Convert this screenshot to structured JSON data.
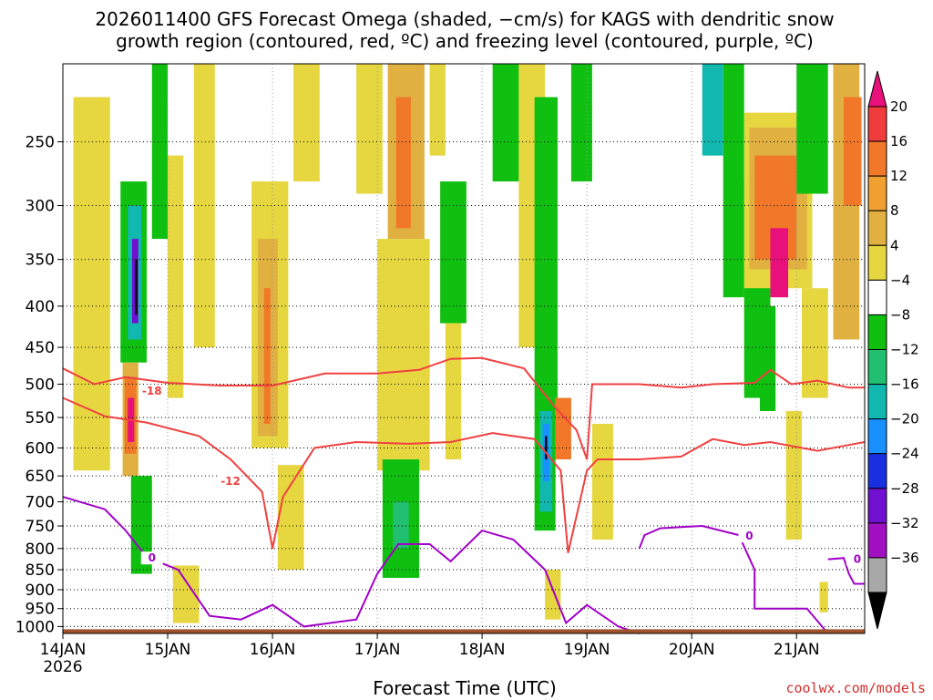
{
  "chart_data": {
    "type": "heatmap",
    "title_line1": "2026011400 GFS Forecast Omega (shaded, −cm/s) for KAGS with dendritic snow",
    "title_line2": "growth region (contoured, red, ºC) and freezing level (contoured, purple, ºC)",
    "xlabel": "Forecast Time (UTC)",
    "ylabel": "",
    "credit": "coolwx.com/models",
    "x_ticks": [
      {
        "day": 0,
        "label": "14JAN",
        "sub": "2026"
      },
      {
        "day": 1,
        "label": "15JAN",
        "sub": ""
      },
      {
        "day": 2,
        "label": "16JAN",
        "sub": ""
      },
      {
        "day": 3,
        "label": "17JAN",
        "sub": ""
      },
      {
        "day": 4,
        "label": "18JAN",
        "sub": ""
      },
      {
        "day": 5,
        "label": "19JAN",
        "sub": ""
      },
      {
        "day": 6,
        "label": "20JAN",
        "sub": ""
      },
      {
        "day": 7,
        "label": "21JAN",
        "sub": ""
      }
    ],
    "xlim": [
      0,
      7.65
    ],
    "y_ticks": [
      250,
      300,
      350,
      400,
      450,
      500,
      550,
      600,
      650,
      700,
      750,
      800,
      850,
      900,
      950,
      1000
    ],
    "ylim": [
      200,
      1020
    ],
    "y_scale": "log-pressure",
    "grid": true,
    "colorbar": {
      "labels": [
        "20",
        "16",
        "12",
        "8",
        "4",
        "−4",
        "−8",
        "−12",
        "−16",
        "−20",
        "−24",
        "−28",
        "−32",
        "−36"
      ],
      "colors": [
        "#e8107a",
        "#f03c3c",
        "#f07828",
        "#f0a030",
        "#e0b040",
        "#e6d640",
        "#ffffff",
        "#10c010",
        "#20c070",
        "#10b8b0",
        "#1890ff",
        "#1830e0",
        "#7010d0",
        "#a010c0",
        "#a8a8a8",
        "#000000"
      ]
    },
    "ground_color": "#a0522d",
    "omega_cells": [
      {
        "x": [
          0.55,
          0.8
        ],
        "p": [
          280,
          470
        ],
        "color": "#10c010"
      },
      {
        "x": [
          0.62,
          0.75
        ],
        "p": [
          300,
          440
        ],
        "color": "#10b8b0"
      },
      {
        "x": [
          0.66,
          0.72
        ],
        "p": [
          330,
          420
        ],
        "color": "#7010d0"
      },
      {
        "x": [
          0.69,
          0.71
        ],
        "p": [
          350,
          410
        ],
        "color": "#000000"
      },
      {
        "x": [
          0.57,
          0.72
        ],
        "p": [
          470,
          650
        ],
        "color": "#e0b040"
      },
      {
        "x": [
          0.59,
          0.7
        ],
        "p": [
          490,
          610
        ],
        "color": "#f07828"
      },
      {
        "x": [
          0.62,
          0.68
        ],
        "p": [
          520,
          590
        ],
        "color": "#e8107a"
      },
      {
        "x": [
          0.18,
          0.3
        ],
        "p": [
          300,
          500
        ],
        "color": "#10c010"
      },
      {
        "x": [
          0.1,
          0.45
        ],
        "p": [
          220,
          640
        ],
        "color": "#e6d640"
      },
      {
        "x": [
          0.65,
          0.85
        ],
        "p": [
          650,
          860
        ],
        "color": "#10c010"
      },
      {
        "x": [
          0.85,
          1.0
        ],
        "p": [
          200,
          330
        ],
        "color": "#10c010"
      },
      {
        "x": [
          1.0,
          1.15
        ],
        "p": [
          260,
          520
        ],
        "color": "#e6d640"
      },
      {
        "x": [
          1.25,
          1.45
        ],
        "p": [
          200,
          450
        ],
        "color": "#e6d640"
      },
      {
        "x": [
          1.05,
          1.3
        ],
        "p": [
          840,
          990
        ],
        "color": "#e6d640"
      },
      {
        "x": [
          1.8,
          2.15
        ],
        "p": [
          280,
          600
        ],
        "color": "#e6d640"
      },
      {
        "x": [
          1.86,
          2.05
        ],
        "p": [
          330,
          580
        ],
        "color": "#e0b040"
      },
      {
        "x": [
          1.92,
          1.98
        ],
        "p": [
          380,
          560
        ],
        "color": "#f07828"
      },
      {
        "x": [
          2.05,
          2.3
        ],
        "p": [
          630,
          850
        ],
        "color": "#e6d640"
      },
      {
        "x": [
          2.2,
          2.45
        ],
        "p": [
          200,
          280
        ],
        "color": "#e6d640"
      },
      {
        "x": [
          2.8,
          3.05
        ],
        "p": [
          200,
          290
        ],
        "color": "#e6d640"
      },
      {
        "x": [
          3.1,
          3.45
        ],
        "p": [
          200,
          330
        ],
        "color": "#e0b040"
      },
      {
        "x": [
          3.18,
          3.32
        ],
        "p": [
          220,
          320
        ],
        "color": "#f07828"
      },
      {
        "x": [
          3.0,
          3.5
        ],
        "p": [
          330,
          640
        ],
        "color": "#e6d640"
      },
      {
        "x": [
          3.05,
          3.4
        ],
        "p": [
          620,
          870
        ],
        "color": "#10c010"
      },
      {
        "x": [
          3.15,
          3.3
        ],
        "p": [
          700,
          800
        ],
        "color": "#20c070"
      },
      {
        "x": [
          3.5,
          3.65
        ],
        "p": [
          200,
          260
        ],
        "color": "#e6d640"
      },
      {
        "x": [
          3.6,
          3.85
        ],
        "p": [
          280,
          420
        ],
        "color": "#10c010"
      },
      {
        "x": [
          3.65,
          3.8
        ],
        "p": [
          420,
          620
        ],
        "color": "#e6d640"
      },
      {
        "x": [
          4.1,
          4.35
        ],
        "p": [
          200,
          280
        ],
        "color": "#10c010"
      },
      {
        "x": [
          4.35,
          4.6
        ],
        "p": [
          200,
          450
        ],
        "color": "#e6d640"
      },
      {
        "x": [
          4.5,
          4.72
        ],
        "p": [
          220,
          520
        ],
        "color": "#10c010"
      },
      {
        "x": [
          4.5,
          4.7
        ],
        "p": [
          520,
          760
        ],
        "color": "#10c010"
      },
      {
        "x": [
          4.55,
          4.67
        ],
        "p": [
          540,
          720
        ],
        "color": "#10b8b0"
      },
      {
        "x": [
          4.58,
          4.64
        ],
        "p": [
          560,
          660
        ],
        "color": "#1890ff"
      },
      {
        "x": [
          4.6,
          4.62
        ],
        "p": [
          580,
          620
        ],
        "color": "#000000"
      },
      {
        "x": [
          4.7,
          4.85
        ],
        "p": [
          520,
          620
        ],
        "color": "#f07828"
      },
      {
        "x": [
          4.6,
          4.75
        ],
        "p": [
          850,
          980
        ],
        "color": "#e6d640"
      },
      {
        "x": [
          4.85,
          5.05
        ],
        "p": [
          200,
          280
        ],
        "color": "#10c010"
      },
      {
        "x": [
          5.05,
          5.25
        ],
        "p": [
          560,
          780
        ],
        "color": "#e6d640"
      },
      {
        "x": [
          6.1,
          6.3
        ],
        "p": [
          200,
          260
        ],
        "color": "#10b8b0"
      },
      {
        "x": [
          6.3,
          6.5
        ],
        "p": [
          200,
          390
        ],
        "color": "#10c010"
      },
      {
        "x": [
          6.5,
          6.75
        ],
        "p": [
          280,
          520
        ],
        "color": "#10c010"
      },
      {
        "x": [
          6.5,
          7.15
        ],
        "p": [
          230,
          380
        ],
        "color": "#e6d640"
      },
      {
        "x": [
          6.55,
          7.1
        ],
        "p": [
          240,
          360
        ],
        "color": "#e0b040"
      },
      {
        "x": [
          6.6,
          7.0
        ],
        "p": [
          260,
          350
        ],
        "color": "#f07828"
      },
      {
        "x": [
          6.75,
          6.92
        ],
        "p": [
          320,
          390
        ],
        "color": "#e8107a"
      },
      {
        "x": [
          6.65,
          6.8
        ],
        "p": [
          400,
          540
        ],
        "color": "#10c010"
      },
      {
        "x": [
          7.0,
          7.3
        ],
        "p": [
          200,
          290
        ],
        "color": "#10c010"
      },
      {
        "x": [
          7.35,
          7.6
        ],
        "p": [
          200,
          440
        ],
        "color": "#e0b040"
      },
      {
        "x": [
          7.45,
          7.62
        ],
        "p": [
          220,
          300
        ],
        "color": "#f07828"
      },
      {
        "x": [
          7.05,
          7.3
        ],
        "p": [
          380,
          520
        ],
        "color": "#e6d640"
      },
      {
        "x": [
          6.9,
          7.05
        ],
        "p": [
          540,
          780
        ],
        "color": "#e6d640"
      },
      {
        "x": [
          7.22,
          7.3
        ],
        "p": [
          880,
          960
        ],
        "color": "#e6d640"
      }
    ],
    "contours": [
      {
        "name": "-18",
        "color": "#f04040",
        "label_at": [
          0.85,
          510
        ],
        "points": [
          [
            0.0,
            478
          ],
          [
            0.3,
            500
          ],
          [
            0.6,
            490
          ],
          [
            1.0,
            498
          ],
          [
            1.5,
            502
          ],
          [
            2.0,
            502
          ],
          [
            2.5,
            485
          ],
          [
            3.0,
            485
          ],
          [
            3.4,
            480
          ],
          [
            3.7,
            465
          ],
          [
            4.0,
            464
          ],
          [
            4.4,
            478
          ],
          [
            4.7,
            535
          ],
          [
            4.9,
            570
          ],
          [
            5.0,
            620
          ],
          [
            5.05,
            500
          ],
          [
            5.5,
            500
          ],
          [
            5.9,
            505
          ],
          [
            6.2,
            500
          ],
          [
            6.6,
            498
          ],
          [
            6.75,
            480
          ],
          [
            6.95,
            500
          ],
          [
            7.2,
            495
          ],
          [
            7.5,
            505
          ],
          [
            7.65,
            505
          ]
        ]
      },
      {
        "name": "-12",
        "color": "#f04040",
        "label_at": [
          1.6,
          660
        ],
        "points": [
          [
            0.0,
            520
          ],
          [
            0.4,
            548
          ],
          [
            0.8,
            558
          ],
          [
            1.3,
            580
          ],
          [
            1.6,
            620
          ],
          [
            1.9,
            680
          ],
          [
            2.0,
            800
          ],
          [
            2.1,
            690
          ],
          [
            2.4,
            600
          ],
          [
            2.8,
            590
          ],
          [
            3.3,
            593
          ],
          [
            3.7,
            590
          ],
          [
            4.1,
            575
          ],
          [
            4.5,
            585
          ],
          [
            4.75,
            640
          ],
          [
            4.82,
            810
          ],
          [
            5.0,
            640
          ],
          [
            5.1,
            620
          ],
          [
            5.5,
            620
          ],
          [
            5.9,
            615
          ],
          [
            6.2,
            585
          ],
          [
            6.5,
            595
          ],
          [
            6.75,
            590
          ],
          [
            7.2,
            605
          ],
          [
            7.5,
            595
          ],
          [
            7.65,
            590
          ]
        ]
      },
      {
        "name": "0",
        "color": "#a000c8",
        "label_at": [
          0.85,
          822
        ],
        "points": [
          [
            0.0,
            690
          ],
          [
            0.4,
            715
          ],
          [
            0.6,
            760
          ],
          [
            0.8,
            820
          ],
          [
            1.1,
            850
          ],
          [
            1.4,
            970
          ],
          [
            1.7,
            980
          ],
          [
            2.0,
            940
          ],
          [
            2.3,
            1000
          ],
          [
            2.8,
            980
          ],
          [
            3.0,
            860
          ],
          [
            3.2,
            790
          ],
          [
            3.5,
            790
          ],
          [
            3.7,
            830
          ],
          [
            4.0,
            760
          ],
          [
            4.3,
            780
          ],
          [
            4.6,
            850
          ],
          [
            4.8,
            990
          ],
          [
            5.0,
            940
          ],
          [
            5.3,
            1000
          ],
          [
            5.5,
            1020
          ]
        ]
      },
      {
        "name": "0",
        "color": "#a000c8",
        "label_at": [
          6.55,
          772
        ],
        "points": [
          [
            5.5,
            800
          ],
          [
            5.55,
            770
          ],
          [
            5.7,
            755
          ],
          [
            6.1,
            750
          ],
          [
            6.45,
            770
          ],
          [
            6.6,
            850
          ],
          [
            6.6,
            950
          ],
          [
            7.1,
            950
          ],
          [
            7.3,
            1020
          ]
        ]
      },
      {
        "name": "0",
        "color": "#a000c8",
        "label_at": [
          7.58,
          825
        ],
        "points": [
          [
            7.3,
            825
          ],
          [
            7.45,
            822
          ],
          [
            7.5,
            860
          ],
          [
            7.55,
            885
          ],
          [
            7.65,
            885
          ]
        ]
      }
    ]
  }
}
